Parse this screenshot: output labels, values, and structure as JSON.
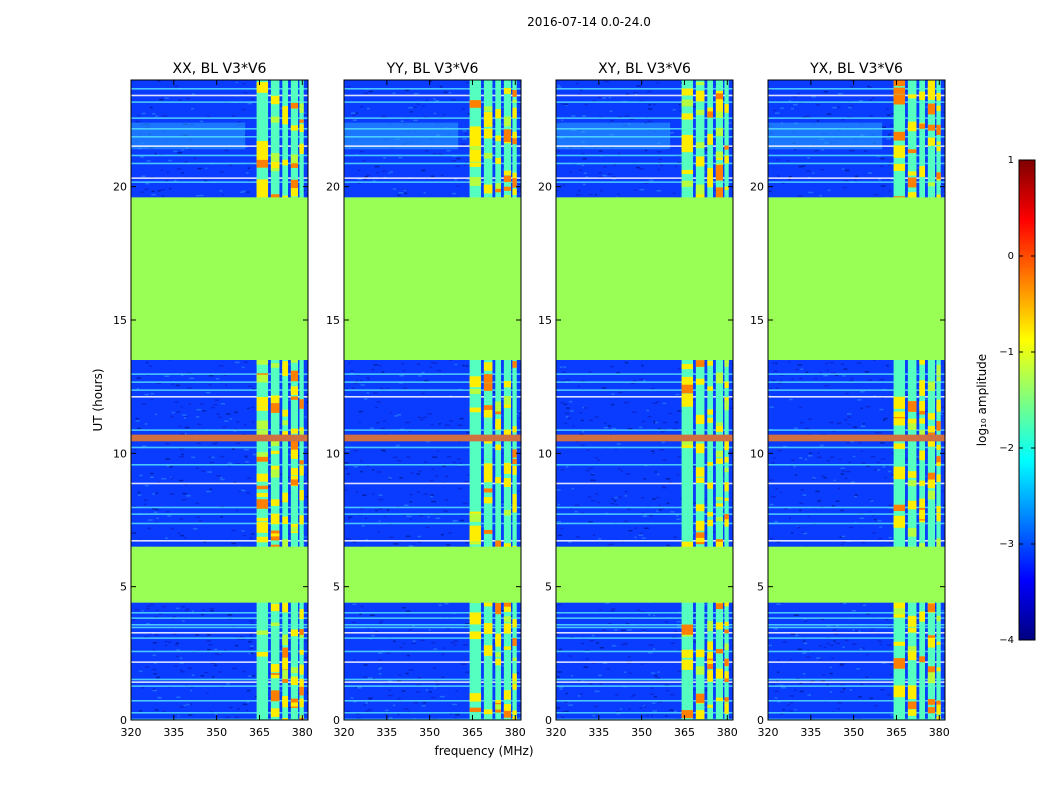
{
  "chart_data": {
    "type": "heatmap",
    "suptitle": "2016-07-14 0.0-24.0",
    "ylabel": "UT (hours)",
    "xlabel": "frequency (MHz)",
    "xlim": [
      320,
      382
    ],
    "ylim": [
      0,
      24
    ],
    "xticks": [
      "320",
      "335",
      "350",
      "365",
      "380"
    ],
    "xtick_values": [
      320,
      335,
      350,
      365,
      380
    ],
    "yticks": [
      "0",
      "5",
      "10",
      "15",
      "20"
    ],
    "ytick_values": [
      0,
      5,
      10,
      15,
      20
    ],
    "panels": [
      {
        "title": "XX, BL V3*V6"
      },
      {
        "title": "YY, BL V3*V6"
      },
      {
        "title": "XY, BL V3*V6"
      },
      {
        "title": "YX, BL V3*V6"
      }
    ],
    "flagged_ut_ranges": [
      [
        4.4,
        6.5
      ],
      [
        13.5,
        19.6
      ]
    ],
    "strong_rfi_ut_ranges": [
      [
        10.45,
        10.7
      ]
    ],
    "rfi_frequency_bands_mhz": [
      [
        364,
        368
      ],
      [
        369,
        372
      ],
      [
        373,
        375
      ],
      [
        376,
        378.5
      ],
      [
        379,
        380.5
      ]
    ],
    "colorbar": {
      "label": "log₁₀ amplitude",
      "range": [
        -4,
        1
      ],
      "ticks": [
        "1",
        "0",
        "−1",
        "−2",
        "−3",
        "−4"
      ],
      "tick_values": [
        1,
        0,
        -1,
        -2,
        -3,
        -4
      ],
      "colormap": "jet",
      "stops": [
        "#00007f",
        "#0000ff",
        "#007fff",
        "#00ffff",
        "#7fff7f",
        "#ffff00",
        "#ff7f00",
        "#ff0000",
        "#7f0000"
      ]
    },
    "colors": {
      "noise_floor": "#0a3cff",
      "noise_alt": "#0a2ad9",
      "flagged": "#99ff55",
      "rfi_band": "#55ffc0",
      "rfi_hot": "#ffee00",
      "rfi_orange": "#ff8000",
      "strong_rfi": "#d07040",
      "cyan_line": "#55ddff"
    }
  }
}
